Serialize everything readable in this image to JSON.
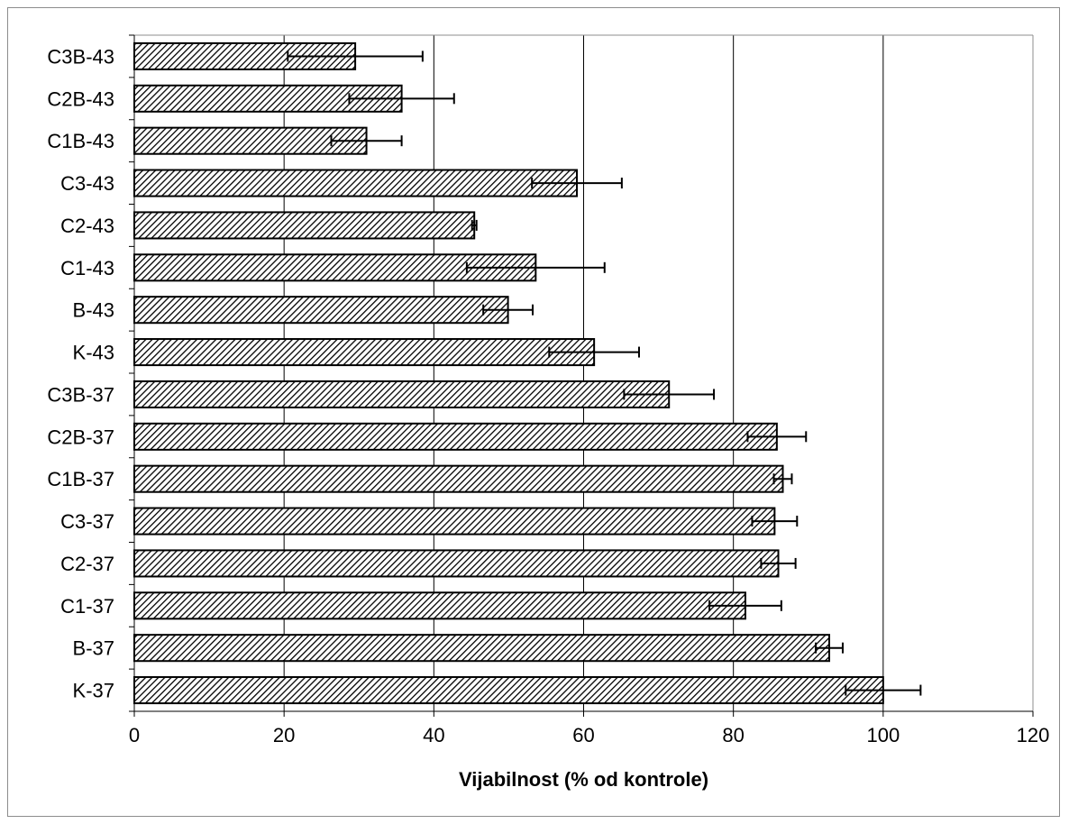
{
  "chart_data": {
    "type": "bar",
    "orientation": "horizontal",
    "title": "",
    "xlabel": "Vijabilnost (% od kontrole)",
    "ylabel": "",
    "xlim": [
      0,
      120
    ],
    "x_ticks": [
      0,
      20,
      40,
      60,
      80,
      100,
      120
    ],
    "grid": true,
    "grid_axis": "x",
    "legend": "none",
    "bar_fill": "diagonal hatch",
    "bar_color": "#000000",
    "categories": [
      "C3B-43",
      "C2B-43",
      "C1B-43",
      "C3-43",
      "C2-43",
      "C1-43",
      "B-43",
      "K-43",
      "C3B-37",
      "C2B-37",
      "C1B-37",
      "C3-37",
      "C2-37",
      "C1-37",
      "B-37",
      "K-37"
    ],
    "values": [
      29.5,
      35.7,
      31.0,
      59.1,
      45.4,
      53.6,
      49.9,
      61.4,
      71.4,
      85.8,
      86.6,
      85.5,
      86.0,
      81.6,
      92.8,
      100.0
    ],
    "errors": [
      9.0,
      7.0,
      4.7,
      6.0,
      0.3,
      9.2,
      3.3,
      6.0,
      6.0,
      3.9,
      1.2,
      3.0,
      2.3,
      4.8,
      1.8,
      5.0
    ]
  }
}
